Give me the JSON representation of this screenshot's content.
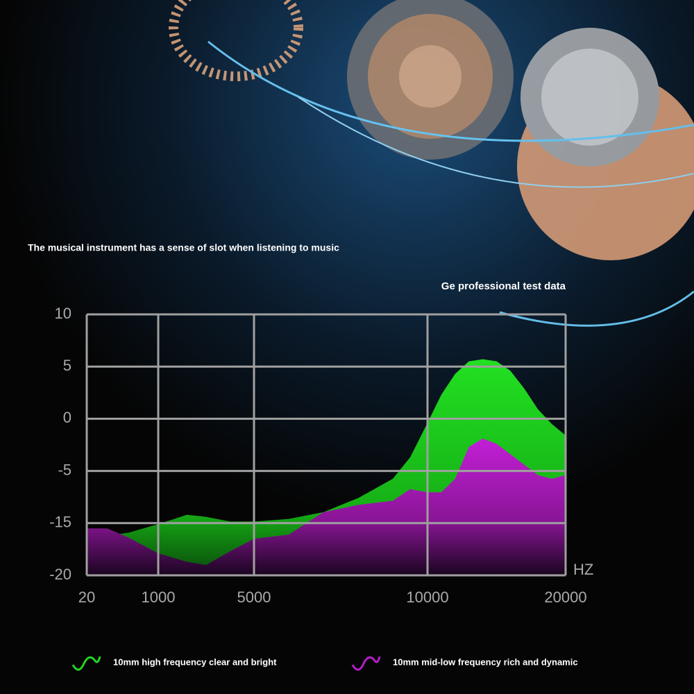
{
  "chart_data": {
    "type": "area",
    "title": "The musical instrument has a sense of slot when listening to music",
    "subtitle": "Ge professional test data",
    "x_label": "HZ",
    "x": [
      20,
      300,
      600,
      1000,
      2200,
      3000,
      4000,
      5000,
      6000,
      7000,
      8000,
      9000,
      9500,
      10000,
      11000,
      12000,
      13000,
      14000,
      15000,
      16000,
      17000,
      18000,
      19000,
      20000
    ],
    "series": [
      {
        "name": "10mm high frequency clear and bright",
        "color": "#1fd61f",
        "values": [
          -16.4,
          -16.2,
          -15.9,
          -15.1,
          -13.4,
          -13.8,
          -14.7,
          -14.7,
          -14.2,
          -12.9,
          -10.2,
          -6.5,
          -3.7,
          -0.4,
          2.3,
          4.3,
          5.5,
          5.7,
          5.5,
          4.6,
          2.9,
          0.9,
          -0.5,
          -1.6
        ]
      },
      {
        "name": "10mm mid-low frequency rich and dynamic",
        "color": "#b41ec8",
        "values": [
          -15.5,
          -15.5,
          -16.4,
          -17.9,
          -18.7,
          -19,
          -17.7,
          -16.5,
          -16.1,
          -12.9,
          -11.5,
          -10.7,
          -8.5,
          -9.1,
          -9.1,
          -6.5,
          -2.7,
          -1.9,
          -2.4,
          -3.4,
          -4.4,
          -5.8,
          -6.5,
          -5.8
        ]
      }
    ],
    "xlim": [
      20,
      20000
    ],
    "xticks": [
      20,
      1000,
      5000,
      10000,
      20000
    ],
    "ylim": [
      -20,
      10
    ],
    "yticks": [
      10,
      5,
      0,
      -5,
      -15,
      -20
    ],
    "grid": true
  }
}
